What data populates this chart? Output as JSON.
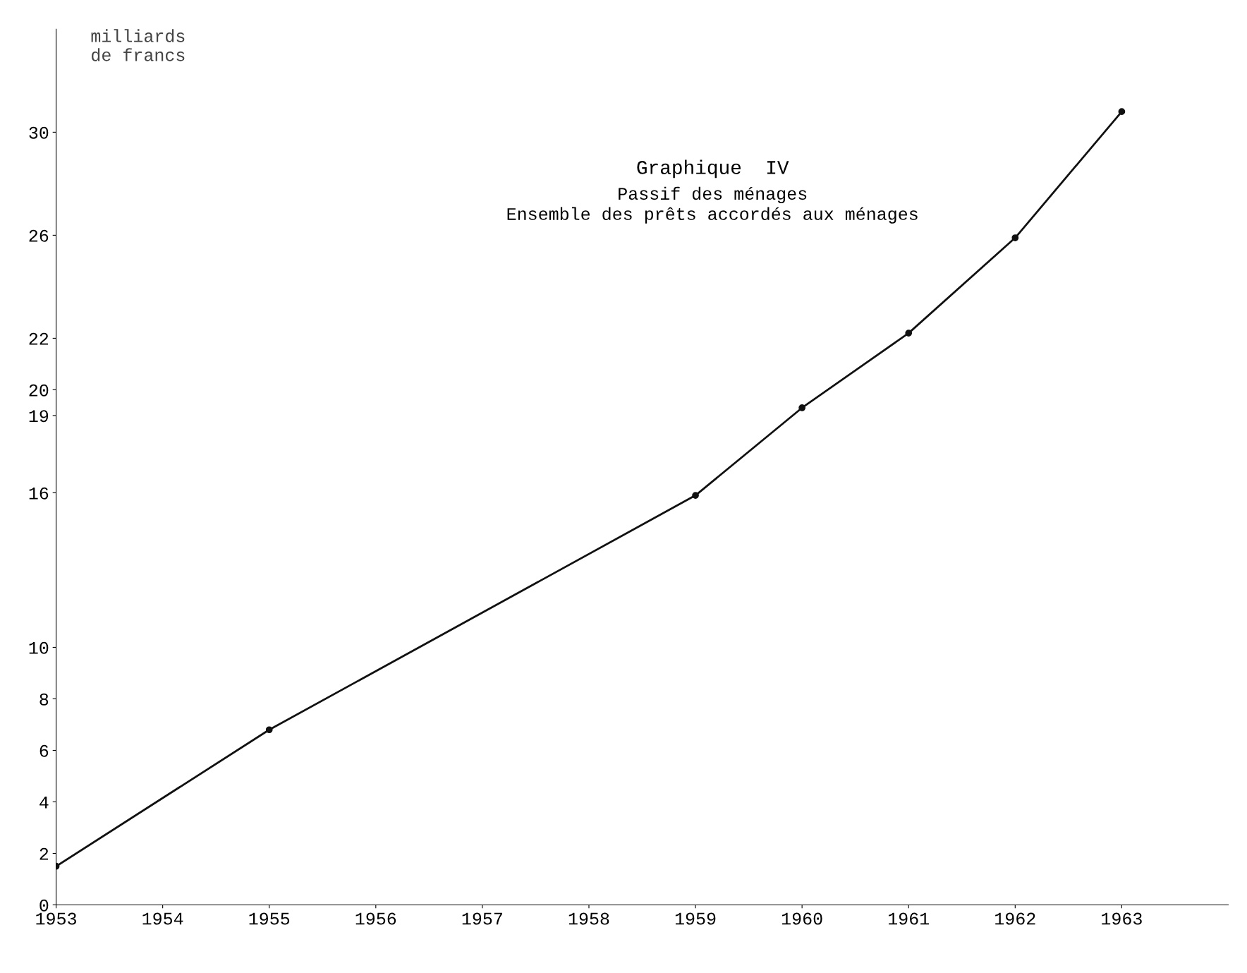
{
  "chart_data": {
    "type": "line",
    "title": "Graphique  IV",
    "subtitle": "Passif des ménages\nEnsemble des prêts accordés aux ménages",
    "ylabel": "milliards\nde francs",
    "x": [
      1953,
      1955,
      1959,
      1960,
      1961,
      1962,
      1963
    ],
    "series": [
      {
        "color": "#111111",
        "values": [
          1.5,
          6.8,
          15.9,
          19.3,
          22.2,
          25.9,
          30.8
        ]
      }
    ],
    "xlim": [
      1953,
      1964
    ],
    "xticks": [
      1953,
      1954,
      1955,
      1956,
      1957,
      1958,
      1959,
      1960,
      1961,
      1962,
      1963
    ],
    "ylim": [
      0,
      34
    ],
    "yticks": [
      0,
      2,
      4,
      6,
      8,
      10,
      16,
      19,
      20,
      22,
      26,
      30
    ],
    "marker": "circle",
    "line_style": "solid",
    "grid": false,
    "legend": false
  }
}
